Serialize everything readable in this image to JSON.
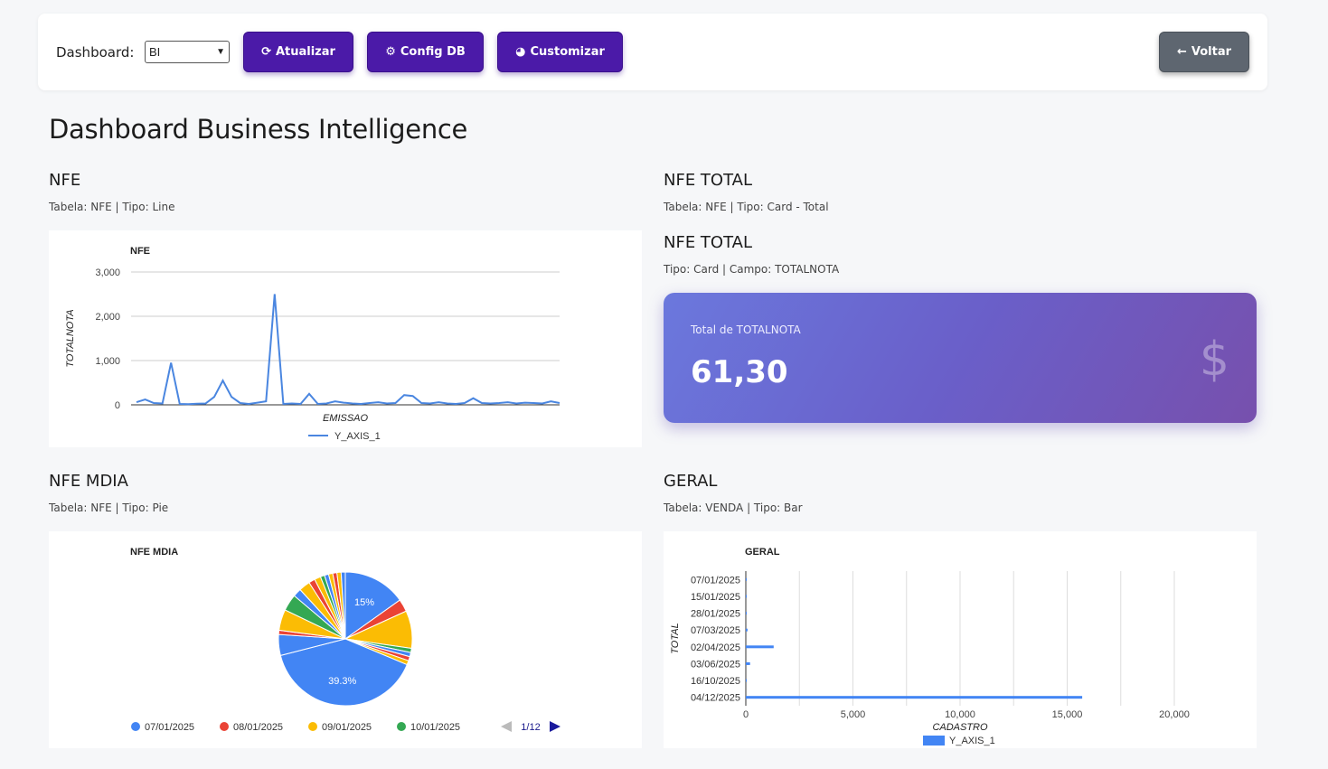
{
  "toolbar": {
    "dashboard_label": "Dashboard:",
    "dashboard_select": "BI",
    "refresh_label": "Atualizar",
    "config_label": "Config DB",
    "customize_label": "Customizar",
    "back_label": "Voltar"
  },
  "page_title": "Dashboard Business Intelligence",
  "sections": {
    "nfe": {
      "title": "NFE",
      "subtitle": "Tabela: NFE | Tipo: Line"
    },
    "nfe_total": {
      "title": "NFE TOTAL",
      "subtitle": "Tabela: NFE | Tipo: Card - Total"
    },
    "nfe_total_card": {
      "title": "NFE TOTAL",
      "subtitle": "Tipo: Card | Campo: TOTALNOTA"
    },
    "nfe_mdia": {
      "title": "NFE MDIA",
      "subtitle": "Tabela: NFE | Tipo: Pie"
    },
    "geral": {
      "title": "GERAL",
      "subtitle": "Tabela: VENDA | Tipo: Bar"
    }
  },
  "card": {
    "label": "Total de TOTALNOTA",
    "value": "61,30",
    "icon": "dollar-icon"
  },
  "chart_data": [
    {
      "type": "line",
      "title": "NFE",
      "xlabel": "EMISSAO",
      "ylabel": "TOTALNOTA",
      "ylim": [
        0,
        3000
      ],
      "yticks": [
        "0",
        "1,000",
        "2,000",
        "3,000"
      ],
      "legend": "bottom",
      "grid": true,
      "series": [
        {
          "name": "Y_AXIS_1",
          "color": "#4a86e0",
          "values": [
            60,
            120,
            40,
            30,
            950,
            20,
            15,
            25,
            30,
            180,
            550,
            180,
            40,
            20,
            50,
            80,
            2500,
            20,
            30,
            20,
            250,
            20,
            30,
            80,
            50,
            30,
            20,
            40,
            60,
            30,
            40,
            220,
            200,
            40,
            30,
            60,
            30,
            20,
            40,
            150,
            40,
            30,
            40,
            60,
            30,
            50,
            40,
            30,
            80,
            40
          ]
        }
      ]
    },
    {
      "type": "pie",
      "title": "NFE MDIA",
      "legend": "bottom",
      "legend_page": "1/12",
      "slices": [
        {
          "label": "07/01/2025",
          "value": 15,
          "color": "#4285f4",
          "show_label": "15%"
        },
        {
          "label": "08/01/2025",
          "value": 3,
          "color": "#ea4335"
        },
        {
          "label": "09/01/2025",
          "value": 9,
          "color": "#fbbc04"
        },
        {
          "label": "10/01/2025",
          "value": 1,
          "color": "#34a853"
        },
        {
          "label": "",
          "value": 1,
          "color": "#4285f4"
        },
        {
          "label": "",
          "value": 1,
          "color": "#ea4335"
        },
        {
          "label": "",
          "value": 1,
          "color": "#fbbc04"
        },
        {
          "label": "",
          "value": 39.3,
          "color": "#4285f4",
          "show_label": "39.3%"
        },
        {
          "label": "",
          "value": 5,
          "color": "#4285f4"
        },
        {
          "label": "",
          "value": 1,
          "color": "#ea4335"
        },
        {
          "label": "",
          "value": 5,
          "color": "#fbbc04"
        },
        {
          "label": "",
          "value": 4,
          "color": "#34a853"
        },
        {
          "label": "",
          "value": 2,
          "color": "#4285f4"
        },
        {
          "label": "",
          "value": 2.7,
          "color": "#fbbc04"
        },
        {
          "label": "",
          "value": 1.5,
          "color": "#ea4335"
        },
        {
          "label": "",
          "value": 1.5,
          "color": "#fbbc04"
        },
        {
          "label": "",
          "value": 1,
          "color": "#34a853"
        },
        {
          "label": "",
          "value": 1,
          "color": "#4285f4"
        },
        {
          "label": "",
          "value": 1,
          "color": "#fbbc04"
        },
        {
          "label": "",
          "value": 1,
          "color": "#ea4335"
        },
        {
          "label": "",
          "value": 1,
          "color": "#fbbc04"
        },
        {
          "label": "",
          "value": 1,
          "color": "#4285f4"
        }
      ]
    },
    {
      "type": "bar",
      "orientation": "horizontal",
      "title": "GERAL",
      "xlabel": "CADASTRO",
      "ylabel": "TOTAL",
      "xlim": [
        0,
        20000
      ],
      "xticks": [
        "0",
        "5,000",
        "10,000",
        "15,000",
        "20,000"
      ],
      "categories": [
        "07/01/2025",
        "15/01/2025",
        "28/01/2025",
        "07/03/2025",
        "02/04/2025",
        "03/06/2025",
        "16/10/2025",
        "04/12/2025"
      ],
      "legend": "bottom",
      "series": [
        {
          "name": "Y_AXIS_1",
          "color": "#4285f4",
          "values": [
            10,
            10,
            30,
            80,
            1300,
            200,
            30,
            15700
          ]
        }
      ]
    }
  ]
}
